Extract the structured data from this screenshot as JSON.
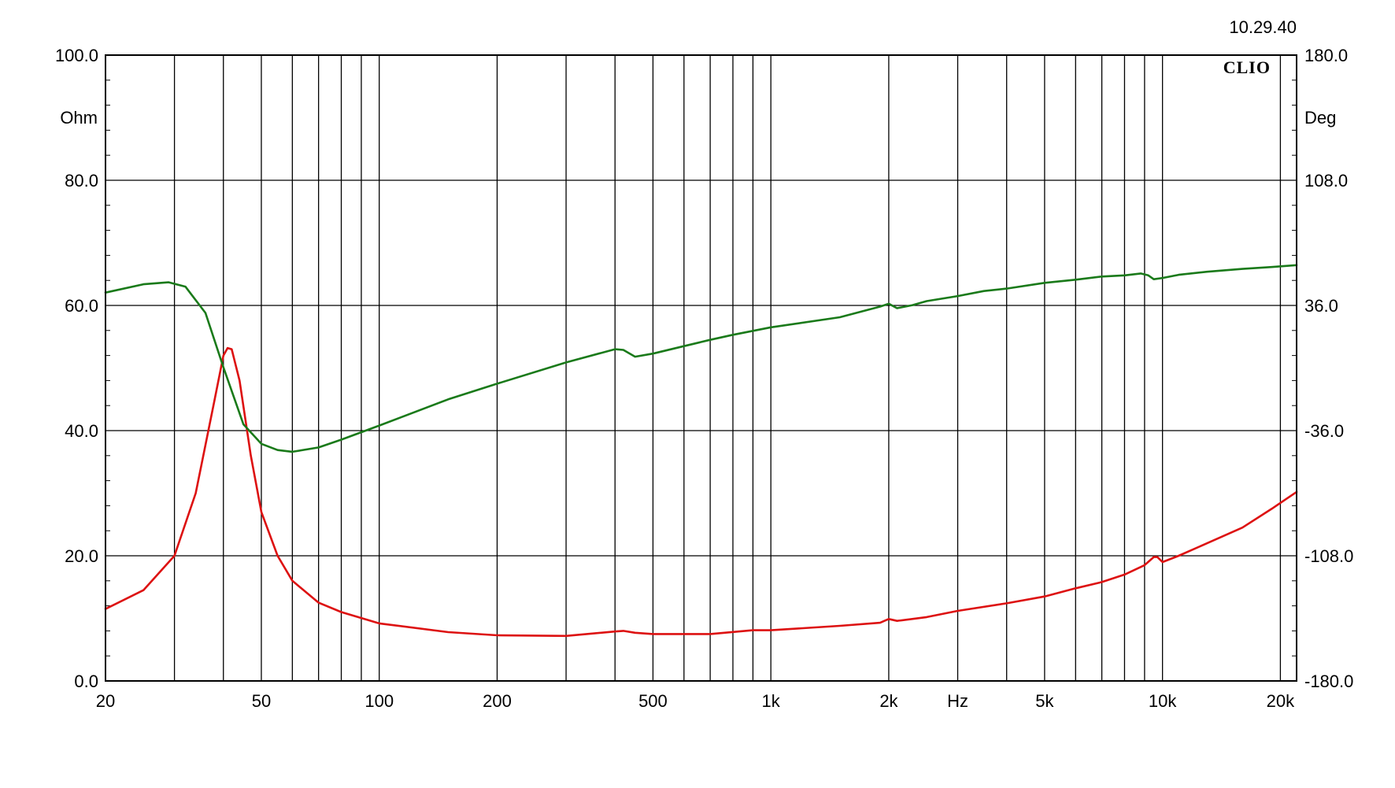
{
  "timestamp": "10.29.40",
  "brand": "CLIO",
  "chart_data": {
    "type": "line",
    "title": "",
    "x_scale": "log",
    "xlim": [
      20,
      22000
    ],
    "xlabel": "Hz",
    "x_ticks": [
      {
        "value": 20,
        "label": "20"
      },
      {
        "value": 50,
        "label": "50"
      },
      {
        "value": 100,
        "label": "100"
      },
      {
        "value": 200,
        "label": "200"
      },
      {
        "value": 500,
        "label": "500"
      },
      {
        "value": 1000,
        "label": "1k"
      },
      {
        "value": 2000,
        "label": "2k"
      },
      {
        "value": 5000,
        "label": "5k"
      },
      {
        "value": 10000,
        "label": "10k"
      },
      {
        "value": 20000,
        "label": "20k"
      }
    ],
    "x_gridlines": [
      30,
      40,
      50,
      60,
      70,
      80,
      90,
      100,
      200,
      300,
      400,
      500,
      600,
      700,
      800,
      900,
      1000,
      2000,
      3000,
      4000,
      5000,
      6000,
      7000,
      8000,
      9000,
      10000,
      20000
    ],
    "left_axis": {
      "label": "Ohm",
      "ylim": [
        0,
        100
      ],
      "ticks": [
        {
          "value": 0,
          "label": "0.0"
        },
        {
          "value": 20,
          "label": "20.0"
        },
        {
          "value": 40,
          "label": "40.0"
        },
        {
          "value": 60,
          "label": "60.0"
        },
        {
          "value": 80,
          "label": "80.0"
        },
        {
          "value": 100,
          "label": "100.0"
        }
      ]
    },
    "right_axis": {
      "label": "Deg",
      "ylim": [
        -180,
        180
      ],
      "ticks": [
        {
          "value": -180,
          "label": "-180.0"
        },
        {
          "value": -108,
          "label": "-108.0"
        },
        {
          "value": -36,
          "label": "-36.0"
        },
        {
          "value": 36,
          "label": "36.0"
        },
        {
          "value": 108,
          "label": "108.0"
        },
        {
          "value": 180,
          "label": "180.0"
        }
      ]
    },
    "grid": true,
    "legend": "none",
    "series": [
      {
        "axis": "left",
        "color": "#dd1111",
        "points": [
          [
            20,
            11.5
          ],
          [
            25,
            14.5
          ],
          [
            30,
            20
          ],
          [
            34,
            30
          ],
          [
            38,
            45
          ],
          [
            40,
            52
          ],
          [
            41,
            53.2
          ],
          [
            42,
            53
          ],
          [
            44,
            48
          ],
          [
            47,
            36
          ],
          [
            50,
            27
          ],
          [
            55,
            20
          ],
          [
            60,
            16
          ],
          [
            70,
            12.5
          ],
          [
            80,
            11
          ],
          [
            100,
            9.2
          ],
          [
            150,
            7.8
          ],
          [
            200,
            7.3
          ],
          [
            300,
            7.2
          ],
          [
            400,
            7.9
          ],
          [
            420,
            8
          ],
          [
            450,
            7.7
          ],
          [
            500,
            7.5
          ],
          [
            700,
            7.5
          ],
          [
            900,
            8.1
          ],
          [
            1000,
            8.1
          ],
          [
            1500,
            8.8
          ],
          [
            1900,
            9.3
          ],
          [
            2000,
            9.9
          ],
          [
            2100,
            9.6
          ],
          [
            2500,
            10.2
          ],
          [
            3000,
            11.2
          ],
          [
            4000,
            12.4
          ],
          [
            5000,
            13.5
          ],
          [
            6000,
            14.8
          ],
          [
            7000,
            15.8
          ],
          [
            8000,
            17
          ],
          [
            9000,
            18.5
          ],
          [
            9500,
            19.8
          ],
          [
            9700,
            19.8
          ],
          [
            10000,
            19
          ],
          [
            11000,
            20
          ],
          [
            13000,
            22
          ],
          [
            16000,
            24.5
          ],
          [
            19000,
            27.5
          ],
          [
            22000,
            30.2
          ]
        ]
      },
      {
        "axis": "right",
        "color": "#1a7a1a",
        "points": [
          [
            20,
            43.4
          ],
          [
            25,
            48.2
          ],
          [
            29,
            49.3
          ],
          [
            32,
            46.8
          ],
          [
            36,
            31.7
          ],
          [
            40,
            0.4
          ],
          [
            45,
            -32.4
          ],
          [
            50,
            -43.6
          ],
          [
            55,
            -47.2
          ],
          [
            60,
            -48.2
          ],
          [
            70,
            -45.7
          ],
          [
            80,
            -41.2
          ],
          [
            100,
            -33.1
          ],
          [
            150,
            -18.0
          ],
          [
            200,
            -9.0
          ],
          [
            300,
            3.2
          ],
          [
            400,
            10.8
          ],
          [
            420,
            10.4
          ],
          [
            450,
            6.5
          ],
          [
            500,
            8.3
          ],
          [
            600,
            12.6
          ],
          [
            700,
            16.2
          ],
          [
            800,
            19.1
          ],
          [
            1000,
            23.4
          ],
          [
            1500,
            29.2
          ],
          [
            1900,
            35.3
          ],
          [
            2000,
            37.0
          ],
          [
            2100,
            34.4
          ],
          [
            2300,
            36.2
          ],
          [
            2500,
            38.5
          ],
          [
            3000,
            41.4
          ],
          [
            3500,
            44.3
          ],
          [
            4000,
            45.7
          ],
          [
            5000,
            49.0
          ],
          [
            6000,
            50.8
          ],
          [
            7000,
            52.6
          ],
          [
            8000,
            53.3
          ],
          [
            8800,
            54.4
          ],
          [
            9200,
            53.3
          ],
          [
            9500,
            51.1
          ],
          [
            10000,
            51.8
          ],
          [
            11000,
            53.6
          ],
          [
            13000,
            55.4
          ],
          [
            16000,
            57.0
          ],
          [
            19000,
            58.1
          ],
          [
            22000,
            59.2
          ]
        ]
      }
    ]
  }
}
